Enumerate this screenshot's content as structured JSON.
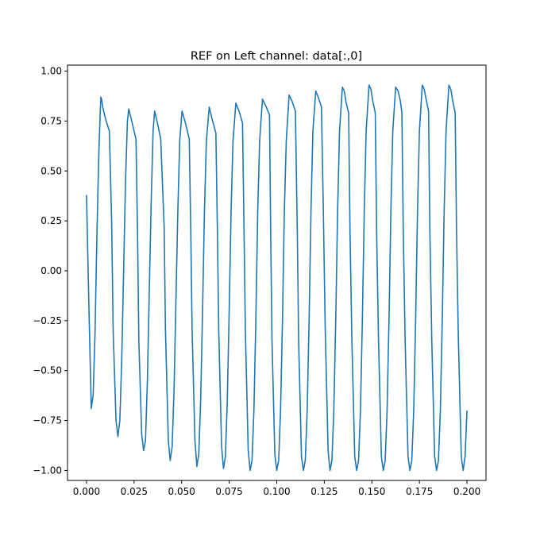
{
  "chart_data": {
    "type": "line",
    "title": "REF on Left channel: data[:,0]",
    "xlabel": "",
    "ylabel": "",
    "xlim": [
      -0.01,
      0.21
    ],
    "ylim": [
      -1.05,
      1.03
    ],
    "grid": false,
    "x_ticks": [
      0.0,
      0.025,
      0.05,
      0.075,
      0.1,
      0.125,
      0.15,
      0.175,
      0.2
    ],
    "x_tick_labels": [
      "0.000",
      "0.025",
      "0.050",
      "0.075",
      "0.100",
      "0.125",
      "0.150",
      "0.175",
      "0.200"
    ],
    "y_ticks": [
      1.0,
      0.75,
      0.5,
      0.25,
      0.0,
      -0.25,
      -0.5,
      -0.75,
      -1.0
    ],
    "y_tick_labels": [
      "1.00",
      "0.75",
      "0.50",
      "0.25",
      "0.00",
      "−0.25",
      "−0.50",
      "−0.75",
      "−1.00"
    ],
    "series": [
      {
        "color": "#1f77b4",
        "x": [
          0.0,
          0.0013,
          0.0025,
          0.0035,
          0.0045,
          0.0055,
          0.0065,
          0.0075,
          0.0079,
          0.0085,
          0.01,
          0.012,
          0.0132,
          0.014,
          0.0155,
          0.0165,
          0.0175,
          0.0185,
          0.0195,
          0.0205,
          0.0215,
          0.0222,
          0.024,
          0.026,
          0.0268,
          0.0275,
          0.029,
          0.03,
          0.031,
          0.032,
          0.033,
          0.034,
          0.035,
          0.0358,
          0.0375,
          0.039,
          0.0408,
          0.0415,
          0.043,
          0.044,
          0.045,
          0.046,
          0.047,
          0.048,
          0.049,
          0.0502,
          0.052,
          0.054,
          0.0548,
          0.0555,
          0.057,
          0.058,
          0.059,
          0.06,
          0.061,
          0.062,
          0.063,
          0.0645,
          0.066,
          0.068,
          0.0688,
          0.0695,
          0.071,
          0.072,
          0.073,
          0.074,
          0.075,
          0.076,
          0.077,
          0.0785,
          0.0805,
          0.082,
          0.0828,
          0.0835,
          0.085,
          0.086,
          0.087,
          0.088,
          0.089,
          0.09,
          0.091,
          0.0925,
          0.0945,
          0.0962,
          0.0968,
          0.0975,
          0.099,
          0.1,
          0.101,
          0.102,
          0.103,
          0.104,
          0.105,
          0.1065,
          0.108,
          0.1098,
          0.1108,
          0.1115,
          0.113,
          0.114,
          0.115,
          0.116,
          0.117,
          0.118,
          0.119,
          0.1205,
          0.1218,
          0.1235,
          0.1245,
          0.1255,
          0.127,
          0.128,
          0.129,
          0.13,
          0.131,
          0.132,
          0.133,
          0.1345,
          0.1355,
          0.1365,
          0.1378,
          0.1385,
          0.1395,
          0.141,
          0.142,
          0.143,
          0.144,
          0.145,
          0.146,
          0.147,
          0.1485,
          0.1495,
          0.1505,
          0.1518,
          0.1525,
          0.1535,
          0.155,
          0.156,
          0.157,
          0.158,
          0.159,
          0.16,
          0.161,
          0.1625,
          0.1638,
          0.165,
          0.1658,
          0.1665,
          0.1675,
          0.169,
          0.17,
          0.171,
          0.172,
          0.173,
          0.174,
          0.175,
          0.1765,
          0.1775,
          0.1785,
          0.1798,
          0.1805,
          0.1815,
          0.183,
          0.184,
          0.185,
          0.186,
          0.187,
          0.188,
          0.189,
          0.1905,
          0.1915,
          0.1925,
          0.1938,
          0.1945,
          0.1955,
          0.197,
          0.198,
          0.199,
          0.2
        ],
        "y": [
          0.38,
          -0.2,
          -0.69,
          -0.62,
          -0.3,
          0.2,
          0.6,
          0.87,
          0.86,
          0.82,
          0.76,
          0.7,
          0.25,
          -0.3,
          -0.75,
          -0.83,
          -0.75,
          -0.45,
          0.0,
          0.45,
          0.75,
          0.81,
          0.74,
          0.66,
          0.2,
          -0.35,
          -0.82,
          -0.9,
          -0.85,
          -0.55,
          -0.1,
          0.35,
          0.7,
          0.8,
          0.73,
          0.66,
          0.22,
          -0.3,
          -0.85,
          -0.95,
          -0.88,
          -0.6,
          -0.15,
          0.3,
          0.65,
          0.8,
          0.74,
          0.66,
          0.2,
          -0.3,
          -0.85,
          -0.98,
          -0.92,
          -0.65,
          -0.2,
          0.3,
          0.65,
          0.82,
          0.76,
          0.69,
          0.2,
          -0.3,
          -0.88,
          -0.99,
          -0.93,
          -0.65,
          -0.2,
          0.3,
          0.65,
          0.84,
          0.79,
          0.74,
          0.2,
          -0.3,
          -0.9,
          -1.0,
          -0.95,
          -0.7,
          -0.25,
          0.3,
          0.65,
          0.86,
          0.82,
          0.78,
          0.2,
          -0.35,
          -0.92,
          -1.0,
          -0.95,
          -0.7,
          -0.25,
          0.3,
          0.65,
          0.88,
          0.85,
          0.8,
          0.2,
          -0.35,
          -0.93,
          -1.0,
          -0.95,
          -0.7,
          -0.25,
          0.3,
          0.7,
          0.9,
          0.87,
          0.82,
          0.3,
          -0.3,
          -0.9,
          -1.0,
          -0.95,
          -0.7,
          -0.25,
          0.3,
          0.7,
          0.92,
          0.9,
          0.84,
          0.79,
          0.2,
          -0.35,
          -0.93,
          -1.0,
          -0.95,
          -0.7,
          -0.25,
          0.3,
          0.7,
          0.93,
          0.91,
          0.85,
          0.79,
          0.2,
          -0.35,
          -0.93,
          -1.0,
          -0.95,
          -0.7,
          -0.25,
          0.3,
          0.7,
          0.92,
          0.9,
          0.85,
          0.79,
          0.2,
          -0.35,
          -0.93,
          -1.0,
          -0.95,
          -0.7,
          -0.25,
          0.3,
          0.7,
          0.93,
          0.91,
          0.86,
          0.8,
          0.2,
          -0.35,
          -0.93,
          -1.0,
          -0.95,
          -0.7,
          -0.25,
          0.3,
          0.7,
          0.93,
          0.91,
          0.85,
          0.79,
          0.2,
          -0.35,
          -0.93,
          -1.0,
          -0.93,
          -0.7
        ]
      }
    ]
  }
}
